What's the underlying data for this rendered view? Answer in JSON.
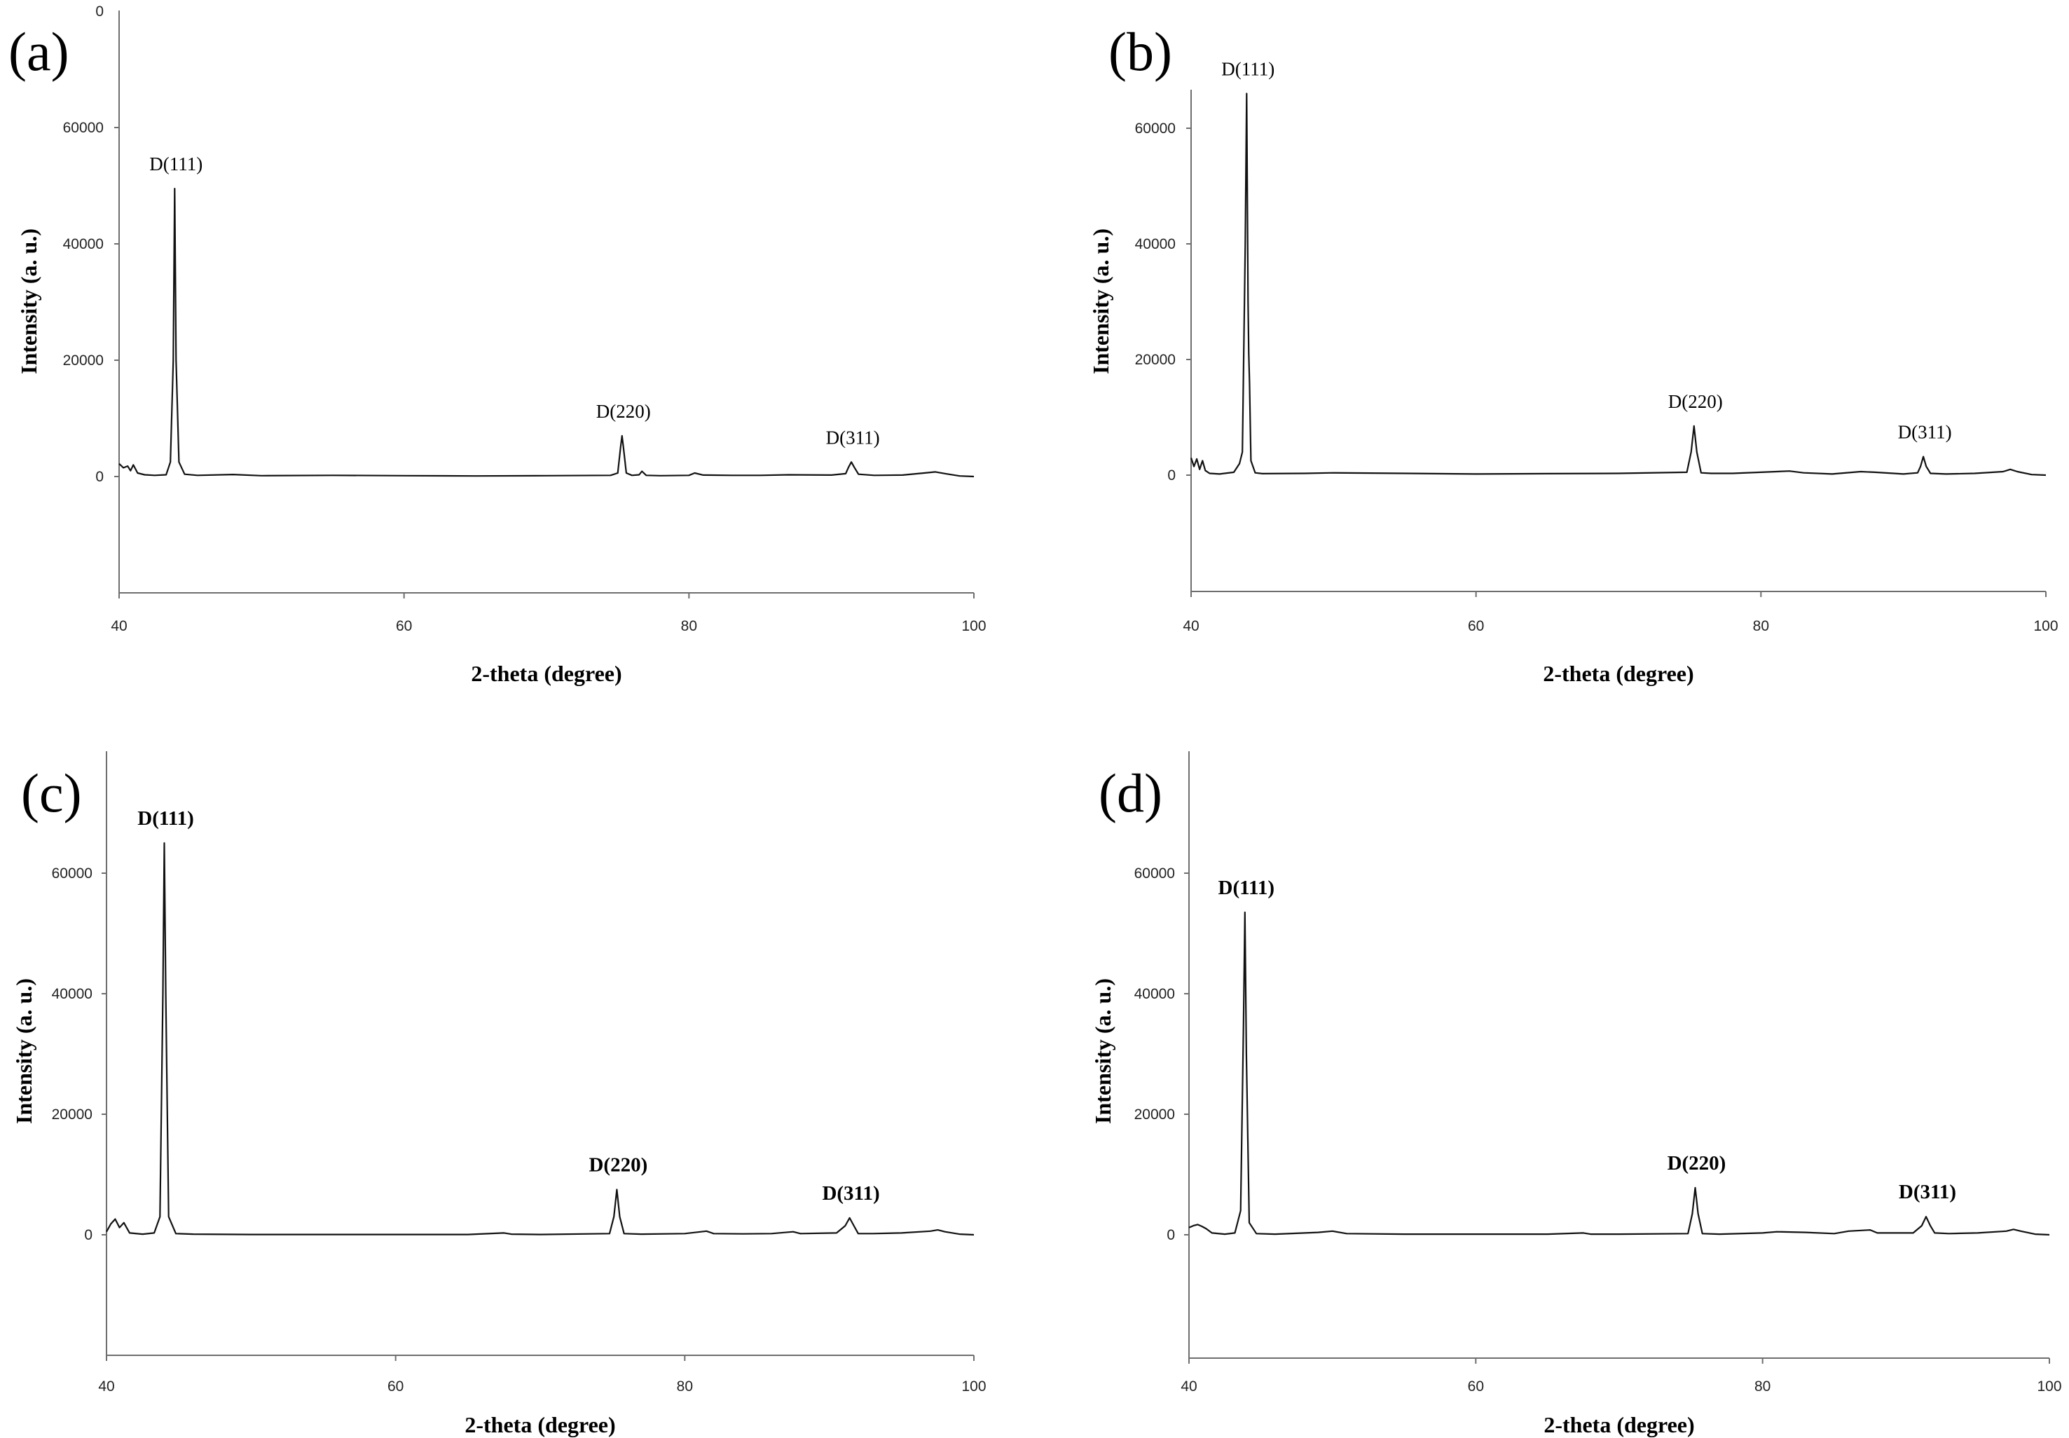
{
  "chart_data": [
    {
      "panel_label": "(a)",
      "type": "line",
      "xlabel": "2-theta (degree)",
      "ylabel": "Intensity (a. u.)",
      "xlim": [
        40,
        100
      ],
      "ylim": [
        -20000,
        80000
      ],
      "x_ticks": [
        "40",
        "60",
        "80",
        "100"
      ],
      "y_ticks": [
        "0",
        "20000",
        "40000",
        "60000"
      ],
      "top_tick_partial": "0",
      "annotation_style": "normal",
      "peaks": [
        {
          "label": "D(111)",
          "x": 43.9,
          "y": 49500
        },
        {
          "label": "D(220)",
          "x": 75.3,
          "y": 7000
        },
        {
          "label": "D(311)",
          "x": 91.4,
          "y": 2500
        }
      ],
      "series": [
        {
          "x": [
            40.0,
            40.3,
            40.6,
            40.8,
            41.0,
            41.3,
            41.8,
            42.5,
            43.3,
            43.6,
            43.8,
            43.9,
            44.0,
            44.2,
            44.6,
            45.5,
            48,
            50,
            55,
            60,
            65,
            70,
            74.5,
            75.0,
            75.2,
            75.3,
            75.4,
            75.6,
            76.0,
            76.5,
            76.7,
            77.0,
            78,
            80,
            80.4,
            81,
            83,
            85,
            87,
            90,
            91.0,
            91.2,
            91.4,
            91.6,
            91.9,
            93,
            95,
            96.5,
            97.3,
            98,
            99,
            100
          ],
          "y": [
            2200,
            1500,
            1800,
            1000,
            2000,
            600,
            300,
            200,
            300,
            2500,
            20000,
            49500,
            20000,
            2500,
            400,
            200,
            350,
            150,
            200,
            150,
            100,
            150,
            200,
            600,
            5000,
            7000,
            5000,
            600,
            200,
            300,
            900,
            200,
            150,
            200,
            600,
            250,
            200,
            200,
            300,
            250,
            500,
            1600,
            2500,
            1600,
            400,
            200,
            250,
            600,
            800,
            500,
            100,
            0
          ]
        }
      ]
    },
    {
      "panel_label": "(b)",
      "type": "line",
      "xlabel": "2-theta (degree)",
      "ylabel": "Intensity (a. u.)",
      "xlim": [
        40,
        100
      ],
      "ylim": [
        -20000,
        66000
      ],
      "x_ticks": [
        "40",
        "60",
        "80",
        "100"
      ],
      "y_ticks": [
        "0",
        "20000",
        "40000",
        "60000"
      ],
      "top_tick_partial": "",
      "annotation_style": "normal",
      "peaks": [
        {
          "label": "D(111)",
          "x": 43.9,
          "y": 66000
        },
        {
          "label": "D(220)",
          "x": 75.3,
          "y": 8500
        },
        {
          "label": "D(311)",
          "x": 91.4,
          "y": 3200
        }
      ],
      "series": [
        {
          "x": [
            40.0,
            40.2,
            40.4,
            40.6,
            40.8,
            41.0,
            41.3,
            42.0,
            43.0,
            43.4,
            43.6,
            43.8,
            43.9,
            44.0,
            44.05,
            44.1,
            44.2,
            44.5,
            45,
            48,
            50,
            55,
            60,
            65,
            70,
            74.8,
            75.1,
            75.3,
            75.5,
            75.8,
            76.5,
            78,
            80,
            82,
            83,
            85,
            87,
            88,
            90,
            91.0,
            91.2,
            91.4,
            91.6,
            91.9,
            93,
            95,
            97,
            97.5,
            98,
            99,
            100
          ],
          "y": [
            3000,
            1500,
            2800,
            1000,
            2500,
            800,
            300,
            200,
            500,
            2000,
            4000,
            40000,
            66000,
            30000,
            21000,
            16000,
            2500,
            400,
            250,
            300,
            400,
            300,
            200,
            250,
            300,
            500,
            4000,
            8500,
            4000,
            400,
            300,
            300,
            500,
            700,
            400,
            200,
            600,
            500,
            200,
            400,
            1500,
            3200,
            1500,
            300,
            200,
            300,
            600,
            1000,
            600,
            100,
            0
          ]
        }
      ]
    },
    {
      "panel_label": "(c)",
      "type": "line",
      "xlabel": "2-theta (degree)",
      "ylabel": "Intensity (a. u.)",
      "xlim": [
        40,
        100
      ],
      "ylim": [
        -20000,
        80000
      ],
      "x_ticks": [
        "40",
        "60",
        "80",
        "100"
      ],
      "y_ticks": [
        "0",
        "20000",
        "40000",
        "60000"
      ],
      "top_tick_partial": "",
      "annotation_style": "bold",
      "peaks": [
        {
          "label": "D(111)",
          "x": 44.0,
          "y": 65000
        },
        {
          "label": "D(220)",
          "x": 75.3,
          "y": 7500
        },
        {
          "label": "D(311)",
          "x": 91.4,
          "y": 2800
        }
      ],
      "series": [
        {
          "x": [
            40.0,
            40.3,
            40.6,
            40.9,
            41.2,
            41.6,
            42.5,
            43.3,
            43.7,
            43.9,
            44.0,
            44.1,
            44.3,
            44.8,
            46,
            50,
            55,
            60,
            65,
            67.5,
            68,
            70,
            74.8,
            75.1,
            75.3,
            75.5,
            75.8,
            77,
            80,
            81.5,
            82,
            84,
            86,
            87.5,
            88,
            90.5,
            91.1,
            91.4,
            91.7,
            92,
            93,
            95,
            97,
            97.5,
            98,
            99,
            100
          ],
          "y": [
            500,
            1800,
            2600,
            1200,
            2000,
            300,
            100,
            300,
            3000,
            40000,
            65000,
            40000,
            3000,
            200,
            100,
            50,
            50,
            50,
            50,
            300,
            100,
            50,
            200,
            3000,
            7500,
            3000,
            200,
            100,
            200,
            600,
            200,
            150,
            200,
            500,
            200,
            300,
            1500,
            2800,
            1500,
            200,
            200,
            300,
            600,
            800,
            500,
            100,
            0
          ]
        }
      ]
    },
    {
      "panel_label": "(d)",
      "type": "line",
      "xlabel": "2-theta (degree)",
      "ylabel": "Intensity (a. u.)",
      "xlim": [
        40,
        100
      ],
      "ylim": [
        -20000,
        80000
      ],
      "x_ticks": [
        "40",
        "60",
        "80",
        "100"
      ],
      "y_ticks": [
        "0",
        "20000",
        "40000",
        "60000"
      ],
      "top_tick_partial": "",
      "annotation_style": "bold",
      "peaks": [
        {
          "label": "D(111)",
          "x": 43.9,
          "y": 53500
        },
        {
          "label": "D(220)",
          "x": 75.3,
          "y": 7800
        },
        {
          "label": "D(311)",
          "x": 91.4,
          "y": 3000
        }
      ],
      "series": [
        {
          "x": [
            40.0,
            40.3,
            40.6,
            40.9,
            41.2,
            41.6,
            42.5,
            43.2,
            43.6,
            43.8,
            43.9,
            44.0,
            44.2,
            44.7,
            46,
            49,
            50,
            51,
            55,
            60,
            65,
            67.5,
            68,
            70,
            74.8,
            75.1,
            75.3,
            75.5,
            75.8,
            77,
            80,
            81,
            83,
            85,
            86,
            87.5,
            88,
            90.5,
            91.1,
            91.4,
            91.7,
            92,
            93,
            95,
            97,
            97.5,
            98,
            99,
            100
          ],
          "y": [
            1200,
            1500,
            1700,
            1400,
            1000,
            300,
            100,
            300,
            4000,
            35000,
            53500,
            30000,
            2000,
            200,
            100,
            400,
            600,
            200,
            100,
            100,
            100,
            300,
            100,
            100,
            200,
            3500,
            7800,
            3500,
            200,
            100,
            300,
            500,
            400,
            200,
            600,
            800,
            300,
            300,
            1500,
            3000,
            1500,
            300,
            200,
            300,
            600,
            900,
            600,
            100,
            0
          ]
        }
      ]
    }
  ]
}
